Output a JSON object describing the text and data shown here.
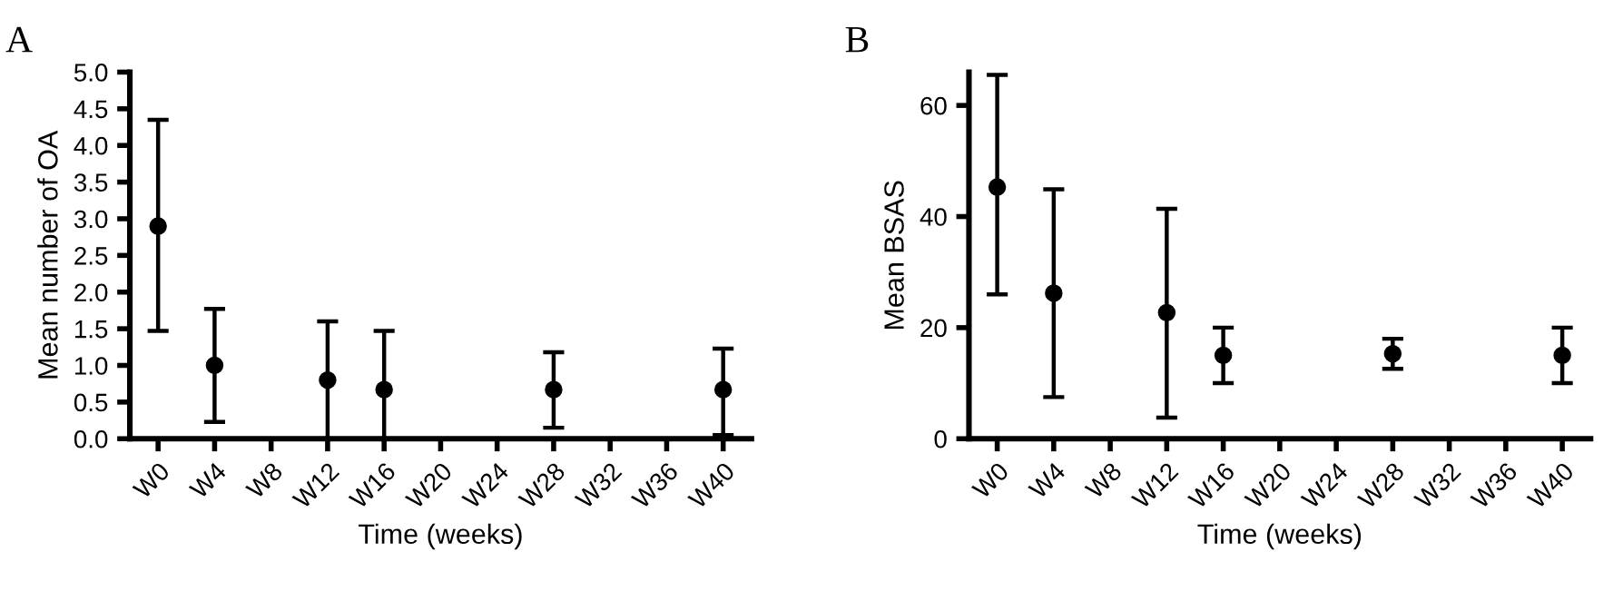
{
  "chart_data": [
    {
      "type": "scatter",
      "title": "A",
      "xlabel": "Time (weeks)",
      "ylabel": "Mean number of OA",
      "categories": [
        "W0",
        "W4",
        "W8",
        "W12",
        "W16",
        "W20",
        "W24",
        "W28",
        "W32",
        "W36",
        "W40"
      ],
      "series": [
        {
          "color": "#000000",
          "values": [
            2.9,
            1.0,
            null,
            0.8,
            0.67,
            null,
            null,
            0.67,
            null,
            null,
            0.67
          ],
          "errors": [
            [
              1.47,
              4.35
            ],
            [
              0.23,
              1.77
            ],
            null,
            [
              0,
              1.6
            ],
            [
              0,
              1.47
            ],
            null,
            null,
            [
              0.15,
              1.18
            ],
            null,
            null,
            [
              0.05,
              1.23
            ]
          ]
        }
      ],
      "ylim": [
        0,
        5
      ],
      "yticks": [
        {
          "value": 0,
          "label": "0.0"
        },
        0.5,
        {
          "value": 1,
          "label": "1.0"
        },
        1.5,
        {
          "value": 2,
          "label": "2.0"
        },
        2.5,
        {
          "value": 3,
          "label": "3.0"
        },
        3.5,
        {
          "value": 4,
          "label": "4.0"
        },
        4.5,
        {
          "value": 5,
          "label": "5.0"
        }
      ],
      "marker": "circle",
      "grid": false,
      "legend": false
    },
    {
      "type": "scatter",
      "title": "B",
      "xlabel": "Time (weeks)",
      "ylabel": "Mean BSAS",
      "categories": [
        "W0",
        "W4",
        "W8",
        "W12",
        "W16",
        "W20",
        "W24",
        "W28",
        "W32",
        "W36",
        "W40"
      ],
      "series": [
        {
          "color": "#000000",
          "values": [
            45.3,
            26.2,
            null,
            22.7,
            15,
            null,
            null,
            15.3,
            null,
            null,
            15
          ],
          "errors": [
            [
              26,
              65.5
            ],
            [
              7.5,
              44.9
            ],
            null,
            [
              3.8,
              41.4
            ],
            [
              10,
              20
            ],
            null,
            null,
            [
              12.6,
              18
            ],
            null,
            null,
            [
              10,
              20
            ]
          ]
        }
      ],
      "ylim": [
        0,
        66
      ],
      "yticks": [
        0,
        20,
        40,
        60
      ],
      "marker": "circle",
      "grid": false,
      "legend": false
    }
  ]
}
